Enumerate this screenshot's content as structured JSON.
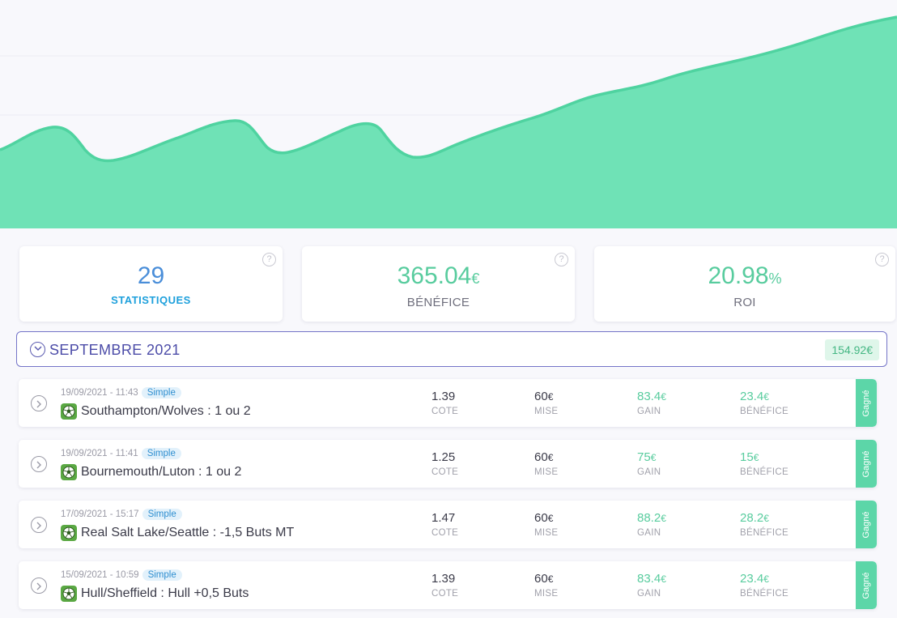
{
  "colors": {
    "area_fill": "#6fe2b6",
    "area_stroke": "#4fd3a0",
    "accent_blue": "#4a8ed9",
    "accent_green": "#58cc9e",
    "month_border": "#7474c8",
    "status_bg": "#5cd6a8"
  },
  "stats": {
    "count": {
      "value": "29",
      "label": "STATISTIQUES"
    },
    "benefice": {
      "value": "365.04",
      "unit": "€",
      "label": "BÉNÉFICE"
    },
    "roi": {
      "value": "20.98",
      "unit": "%",
      "label": "ROI"
    },
    "help_glyph": "?"
  },
  "month": {
    "title": "SEPTEMBRE 2021",
    "total": "154.92€"
  },
  "bets": [
    {
      "date": "19/09/2021 - 11:43",
      "type": "Simple",
      "match": "Southampton/Wolves : 1 ou 2",
      "cote": "1.39",
      "cote_label": "COTE",
      "mise": "60",
      "mise_label": "MISE",
      "gain": "83.4",
      "gain_label": "GAIN",
      "benefice": "23.4",
      "benefice_label": "BÉNÉFICE",
      "currency": "€",
      "status": "Gagné"
    },
    {
      "date": "19/09/2021 - 11:41",
      "type": "Simple",
      "match": "Bournemouth/Luton : 1 ou 2",
      "cote": "1.25",
      "cote_label": "COTE",
      "mise": "60",
      "mise_label": "MISE",
      "gain": "75",
      "gain_label": "GAIN",
      "benefice": "15",
      "benefice_label": "BÉNÉFICE",
      "currency": "€",
      "status": "Gagné"
    },
    {
      "date": "17/09/2021 - 15:17",
      "type": "Simple",
      "match": "Real Salt Lake/Seattle : -1,5 Buts MT",
      "cote": "1.47",
      "cote_label": "COTE",
      "mise": "60",
      "mise_label": "MISE",
      "gain": "88.2",
      "gain_label": "GAIN",
      "benefice": "28.2",
      "benefice_label": "BÉNÉFICE",
      "currency": "€",
      "status": "Gagné"
    },
    {
      "date": "15/09/2021 - 10:59",
      "type": "Simple",
      "match": "Hull/Sheffield : Hull +0,5 Buts",
      "cote": "1.39",
      "cote_label": "COTE",
      "mise": "60",
      "mise_label": "MISE",
      "gain": "83.4",
      "gain_label": "GAIN",
      "benefice": "23.4",
      "benefice_label": "BÉNÉFICE",
      "currency": "€",
      "status": "Gagné"
    }
  ]
}
